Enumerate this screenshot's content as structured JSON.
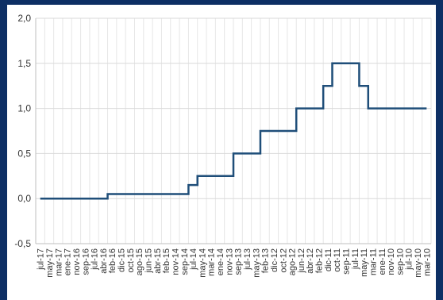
{
  "chart_data": {
    "type": "line",
    "step": true,
    "title": "",
    "xlabel": "",
    "ylabel": "",
    "ylim": [
      -0.5,
      2.0
    ],
    "y_ticks": [
      "2,0",
      "1,5",
      "1,0",
      "0,5",
      "0,0",
      "-0,5"
    ],
    "grid": true,
    "legend": "none",
    "x_order": "newest-first",
    "x_labels": [
      "jul-17",
      "may-17",
      "mar-17",
      "ene-17",
      "nov-16",
      "sep-16",
      "jul-16",
      "abr-16",
      "feb-16",
      "dic-15",
      "oct-15",
      "ago-15",
      "jun-15",
      "abr-15",
      "feb-15",
      "nov-14",
      "sep-14",
      "jul-14",
      "may-14",
      "mar-14",
      "ene-14",
      "nov-13",
      "sep-13",
      "jul-13",
      "may-13",
      "feb-13",
      "dic-12",
      "oct-12",
      "ago-12",
      "jun-12",
      "abr-12",
      "feb-12",
      "dic-11",
      "oct-11",
      "sep-11",
      "jul-11",
      "may-11",
      "mar-11",
      "ene-11",
      "nov-10",
      "sep-10",
      "jul-10",
      "may-10",
      "mar-10"
    ],
    "series": [
      {
        "color": "#1f4e79",
        "values": [
          0,
          0,
          0,
          0,
          0,
          0,
          0,
          0,
          0.05,
          0.05,
          0.05,
          0.05,
          0.05,
          0.05,
          0.05,
          0.05,
          0.05,
          0.15,
          0.25,
          0.25,
          0.25,
          0.25,
          0.5,
          0.5,
          0.5,
          0.75,
          0.75,
          0.75,
          0.75,
          1.0,
          1.0,
          1.0,
          1.25,
          1.5,
          1.5,
          1.5,
          1.25,
          1.0,
          1.0,
          1.0,
          1.0,
          1.0,
          1.0,
          1.0
        ]
      }
    ]
  }
}
